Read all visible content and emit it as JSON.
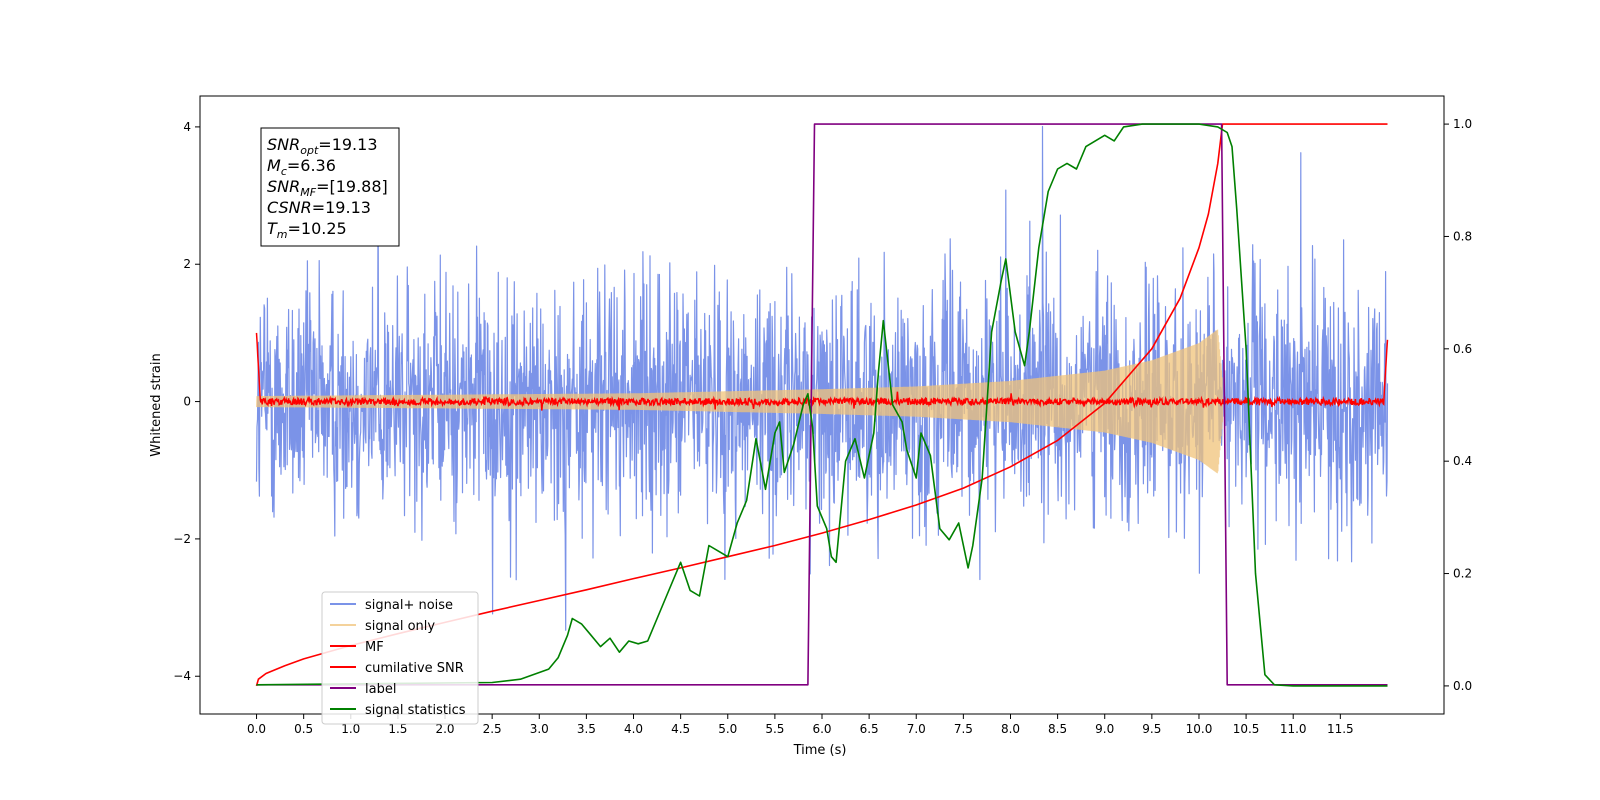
{
  "chart_data": {
    "type": "line",
    "xlabel": "Time (s)",
    "ylabel": "Whitened strain",
    "xlim": [
      -0.6,
      12.6
    ],
    "ylim": [
      -4.55,
      4.45
    ],
    "ylim_right": [
      -0.05,
      1.05
    ],
    "x_ticks": [
      0.0,
      0.5,
      1.0,
      1.5,
      2.0,
      2.5,
      3.0,
      3.5,
      4.0,
      4.5,
      5.0,
      5.5,
      6.0,
      6.5,
      7.0,
      7.5,
      8.0,
      8.5,
      9.0,
      9.5,
      10.0,
      10.5,
      11.0,
      11.5
    ],
    "x_tick_labels": [
      "0.0",
      "0.5",
      "1.0",
      "1.5",
      "2.0",
      "2.5",
      "3.0",
      "3.5",
      "4.0",
      "4.5",
      "5.0",
      "5.5",
      "6.0",
      "6.5",
      "7.0",
      "7.5",
      "8.0",
      "8.5",
      "9.0",
      "9.5",
      "10.0",
      "10.5",
      "11.0",
      "11.5"
    ],
    "y_ticks": [
      -4,
      -2,
      0,
      2,
      4
    ],
    "y_tick_labels": [
      "−4",
      "−2",
      "0",
      "2",
      "4"
    ],
    "y_right_ticks": [
      0.0,
      0.2,
      0.4,
      0.6,
      0.8,
      1.0
    ],
    "y_right_tick_labels": [
      "0.0",
      "0.2",
      "0.4",
      "0.6",
      "0.8",
      "1.0"
    ],
    "grid": false,
    "legend_placement": "lower-left",
    "annotation": {
      "lines": [
        {
          "base": "SNR",
          "sub": "opt",
          "rest": "=19.13"
        },
        {
          "base": "M",
          "sub": "c",
          "rest": "=6.36"
        },
        {
          "base": "SNR",
          "sub": "MF",
          "rest": "=[19.88]"
        },
        {
          "base": "CSNR",
          "sub": "",
          "rest": "=19.13"
        },
        {
          "base": "T",
          "sub": "m",
          "rest": "=10.25"
        }
      ]
    },
    "series": [
      {
        "name": "signal+ noise",
        "color": "#7b93e8",
        "axis": "left",
        "kind": "noise",
        "t_start": 0.0,
        "t_end": 12.0,
        "envelope": {
          "typical": 1.1,
          "max": 4.2,
          "min": -4.1
        }
      },
      {
        "name": "signal only",
        "color": "#f0c37a",
        "axis": "left",
        "kind": "chirp",
        "t_start": 0.0,
        "t_end": 10.25,
        "amplitude_env": {
          "t": [
            0,
            2,
            4,
            6,
            7,
            8,
            9,
            9.5,
            10,
            10.1,
            10.2,
            10.25
          ],
          "a": [
            0.08,
            0.1,
            0.12,
            0.18,
            0.22,
            0.3,
            0.45,
            0.6,
            0.85,
            0.95,
            1.05,
            0.3
          ]
        }
      },
      {
        "name": "MF",
        "color": "#ff0000",
        "axis": "left",
        "kind": "mf",
        "t_start": 0.0,
        "t_end": 12.0,
        "start_value": 1.0,
        "end_value": 0.9,
        "noise": 0.05
      },
      {
        "name": "cumilative SNR",
        "color": "#ff0000",
        "axis": "right",
        "points": [
          [
            0.0,
            0.0
          ],
          [
            0.02,
            0.012
          ],
          [
            0.1,
            0.022
          ],
          [
            0.3,
            0.036
          ],
          [
            0.5,
            0.048
          ],
          [
            1.0,
            0.072
          ],
          [
            1.5,
            0.093
          ],
          [
            2.0,
            0.113
          ],
          [
            2.5,
            0.133
          ],
          [
            3.0,
            0.152
          ],
          [
            3.5,
            0.171
          ],
          [
            4.0,
            0.191
          ],
          [
            4.5,
            0.21
          ],
          [
            5.0,
            0.23
          ],
          [
            5.5,
            0.25
          ],
          [
            6.0,
            0.272
          ],
          [
            6.5,
            0.296
          ],
          [
            7.0,
            0.322
          ],
          [
            7.5,
            0.352
          ],
          [
            8.0,
            0.39
          ],
          [
            8.5,
            0.437
          ],
          [
            9.0,
            0.503
          ],
          [
            9.5,
            0.6
          ],
          [
            9.8,
            0.69
          ],
          [
            10.0,
            0.78
          ],
          [
            10.1,
            0.84
          ],
          [
            10.2,
            0.93
          ],
          [
            10.25,
            1.0
          ],
          [
            12.0,
            1.0
          ]
        ]
      },
      {
        "name": "label",
        "color": "#800080",
        "axis": "right",
        "points": [
          [
            0.0,
            0.002
          ],
          [
            5.85,
            0.002
          ],
          [
            5.92,
            1.0
          ],
          [
            10.24,
            1.0
          ],
          [
            10.3,
            0.002
          ],
          [
            12.0,
            0.002
          ]
        ]
      },
      {
        "name": "signal statistics",
        "color": "#008000",
        "axis": "right",
        "points": [
          [
            0.0,
            0.002
          ],
          [
            2.5,
            0.006
          ],
          [
            2.8,
            0.012
          ],
          [
            3.1,
            0.03
          ],
          [
            3.2,
            0.05
          ],
          [
            3.3,
            0.09
          ],
          [
            3.35,
            0.12
          ],
          [
            3.45,
            0.11
          ],
          [
            3.55,
            0.09
          ],
          [
            3.65,
            0.07
          ],
          [
            3.75,
            0.085
          ],
          [
            3.85,
            0.06
          ],
          [
            3.95,
            0.08
          ],
          [
            4.05,
            0.075
          ],
          [
            4.15,
            0.08
          ],
          [
            4.25,
            0.12
          ],
          [
            4.35,
            0.16
          ],
          [
            4.5,
            0.22
          ],
          [
            4.6,
            0.17
          ],
          [
            4.7,
            0.16
          ],
          [
            4.8,
            0.25
          ],
          [
            4.9,
            0.24
          ],
          [
            5.0,
            0.23
          ],
          [
            5.1,
            0.29
          ],
          [
            5.2,
            0.33
          ],
          [
            5.3,
            0.44
          ],
          [
            5.4,
            0.35
          ],
          [
            5.5,
            0.45
          ],
          [
            5.55,
            0.47
          ],
          [
            5.6,
            0.38
          ],
          [
            5.7,
            0.43
          ],
          [
            5.8,
            0.5
          ],
          [
            5.85,
            0.52
          ],
          [
            5.9,
            0.46
          ],
          [
            5.95,
            0.32
          ],
          [
            6.05,
            0.28
          ],
          [
            6.1,
            0.23
          ],
          [
            6.15,
            0.22
          ],
          [
            6.25,
            0.4
          ],
          [
            6.35,
            0.44
          ],
          [
            6.45,
            0.37
          ],
          [
            6.55,
            0.45
          ],
          [
            6.6,
            0.56
          ],
          [
            6.65,
            0.65
          ],
          [
            6.75,
            0.5
          ],
          [
            6.85,
            0.47
          ],
          [
            6.9,
            0.42
          ],
          [
            7.0,
            0.37
          ],
          [
            7.05,
            0.45
          ],
          [
            7.15,
            0.41
          ],
          [
            7.25,
            0.28
          ],
          [
            7.35,
            0.26
          ],
          [
            7.45,
            0.29
          ],
          [
            7.55,
            0.21
          ],
          [
            7.6,
            0.25
          ],
          [
            7.7,
            0.37
          ],
          [
            7.8,
            0.63
          ],
          [
            7.9,
            0.72
          ],
          [
            7.95,
            0.76
          ],
          [
            8.05,
            0.63
          ],
          [
            8.1,
            0.6
          ],
          [
            8.15,
            0.57
          ],
          [
            8.2,
            0.63
          ],
          [
            8.3,
            0.78
          ],
          [
            8.4,
            0.88
          ],
          [
            8.5,
            0.92
          ],
          [
            8.6,
            0.93
          ],
          [
            8.7,
            0.92
          ],
          [
            8.8,
            0.96
          ],
          [
            8.9,
            0.97
          ],
          [
            9.0,
            0.98
          ],
          [
            9.1,
            0.97
          ],
          [
            9.2,
            0.995
          ],
          [
            9.4,
            1.0
          ],
          [
            9.6,
            1.0
          ],
          [
            10.0,
            1.0
          ],
          [
            10.2,
            0.995
          ],
          [
            10.3,
            0.985
          ],
          [
            10.35,
            0.96
          ],
          [
            10.4,
            0.85
          ],
          [
            10.5,
            0.6
          ],
          [
            10.6,
            0.2
          ],
          [
            10.7,
            0.02
          ],
          [
            10.8,
            0.002
          ],
          [
            11.0,
            0.0
          ],
          [
            12.0,
            0.0
          ]
        ]
      }
    ]
  }
}
